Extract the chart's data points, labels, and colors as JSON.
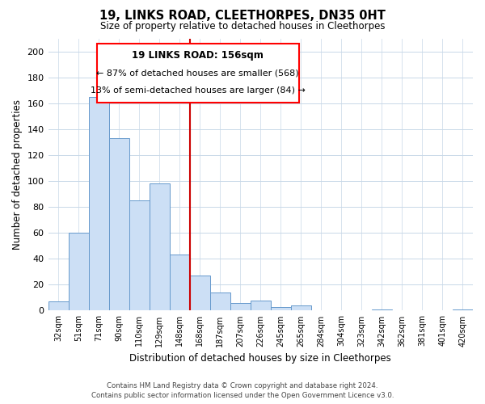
{
  "title": "19, LINKS ROAD, CLEETHORPES, DN35 0HT",
  "subtitle": "Size of property relative to detached houses in Cleethorpes",
  "xlabel": "Distribution of detached houses by size in Cleethorpes",
  "ylabel": "Number of detached properties",
  "bar_labels": [
    "32sqm",
    "51sqm",
    "71sqm",
    "90sqm",
    "110sqm",
    "129sqm",
    "148sqm",
    "168sqm",
    "187sqm",
    "207sqm",
    "226sqm",
    "245sqm",
    "265sqm",
    "284sqm",
    "304sqm",
    "323sqm",
    "342sqm",
    "362sqm",
    "381sqm",
    "401sqm",
    "420sqm"
  ],
  "bar_values": [
    7,
    60,
    165,
    133,
    85,
    98,
    43,
    27,
    14,
    6,
    8,
    3,
    4,
    0,
    0,
    0,
    1,
    0,
    0,
    0,
    1
  ],
  "bar_color": "#ccdff5",
  "bar_edge_color": "#6699cc",
  "reference_line_label": "19 LINKS ROAD: 156sqm",
  "annotation_line1": "← 87% of detached houses are smaller (568)",
  "annotation_line2": "13% of semi-detached houses are larger (84) →",
  "ylim": [
    0,
    210
  ],
  "yticks": [
    0,
    20,
    40,
    60,
    80,
    100,
    120,
    140,
    160,
    180,
    200
  ],
  "footer_line1": "Contains HM Land Registry data © Crown copyright and database right 2024.",
  "footer_line2": "Contains public sector information licensed under the Open Government Licence v3.0.",
  "grid_color": "#c8d8e8",
  "ref_line_color": "#cc0000"
}
